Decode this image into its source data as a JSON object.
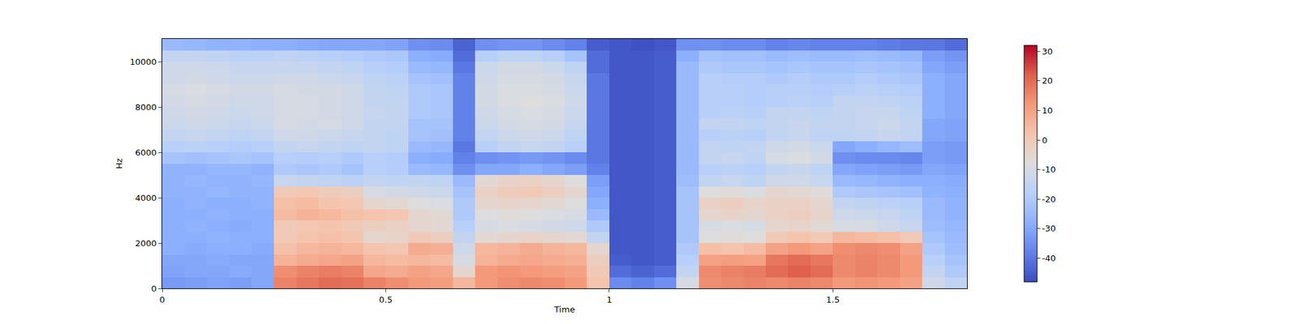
{
  "chart_data": {
    "type": "heatmap",
    "x_label": "Time",
    "y_label": "Hz",
    "x": [
      0.025,
      0.075,
      0.125,
      0.175,
      0.225,
      0.275,
      0.325,
      0.375,
      0.425,
      0.475,
      0.525,
      0.575,
      0.625,
      0.675,
      0.725,
      0.775,
      0.825,
      0.875,
      0.925,
      0.975,
      1.025,
      1.075,
      1.125,
      1.175,
      1.225,
      1.275,
      1.325,
      1.375,
      1.425,
      1.475,
      1.525,
      1.575,
      1.625,
      1.675,
      1.725,
      1.775
    ],
    "y": [
      250,
      750,
      1250,
      1750,
      2250,
      2750,
      3250,
      3750,
      4250,
      4750,
      5250,
      5750,
      6250,
      6750,
      7250,
      7750,
      8250,
      8750,
      9250,
      9750,
      10250,
      10750
    ],
    "z": [
      [
        -33,
        -32,
        -31,
        -32,
        -30,
        16,
        18,
        20,
        19,
        16,
        14,
        12,
        11,
        5,
        12,
        14,
        15,
        14,
        12,
        2,
        -36,
        -38,
        -35,
        -10,
        14,
        15,
        16,
        15,
        16,
        15,
        12,
        13,
        12,
        10,
        -12,
        -16
      ],
      [
        -31,
        -30,
        -30,
        -29,
        -30,
        14,
        16,
        17,
        16,
        9,
        8,
        10,
        9,
        -5,
        12,
        13,
        12,
        11,
        10,
        0,
        -42,
        -44,
        -42,
        -15,
        15,
        16,
        17,
        20,
        22,
        20,
        15,
        16,
        15,
        12,
        -15,
        -20
      ],
      [
        -30,
        -30,
        -29,
        -30,
        -30,
        6,
        8,
        9,
        10,
        5,
        4,
        5,
        4,
        -10,
        6,
        8,
        9,
        8,
        7,
        -2,
        -45,
        -46,
        -45,
        -18,
        10,
        11,
        10,
        18,
        20,
        18,
        15,
        16,
        15,
        12,
        -18,
        -22
      ],
      [
        -28,
        -29,
        -28,
        -28,
        -29,
        3,
        5,
        6,
        5,
        2,
        1,
        8,
        7,
        -12,
        5,
        6,
        8,
        6,
        5,
        -5,
        -46,
        -46,
        -45,
        -20,
        3,
        2,
        4,
        10,
        12,
        10,
        14,
        15,
        14,
        10,
        -20,
        -24
      ],
      [
        -28,
        -28,
        -27,
        -28,
        -28,
        0,
        2,
        3,
        2,
        -5,
        -4,
        0,
        -2,
        -15,
        -6,
        -5,
        -4,
        -5,
        -6,
        -15,
        -46,
        -46,
        -45,
        -22,
        -8,
        -7,
        -8,
        0,
        2,
        0,
        5,
        4,
        3,
        0,
        -22,
        -25
      ],
      [
        -28,
        -27,
        -28,
        -29,
        -28,
        0,
        1,
        2,
        0,
        -2,
        -3,
        -5,
        -6,
        -18,
        -10,
        -9,
        -10,
        -11,
        -12,
        -20,
        -46,
        -46,
        -45,
        -22,
        -10,
        -9,
        -10,
        -5,
        -4,
        -6,
        -10,
        -10,
        -12,
        -14,
        -24,
        -26
      ],
      [
        -28,
        -28,
        -27,
        -28,
        -28,
        4,
        6,
        5,
        3,
        2,
        1,
        -5,
        -6,
        -20,
        -8,
        -7,
        -8,
        -9,
        -10,
        -25,
        -46,
        -46,
        -45,
        -22,
        -5,
        -4,
        -5,
        -3,
        -2,
        -4,
        -12,
        -13,
        -14,
        -16,
        -25,
        -27
      ],
      [
        -28,
        -27,
        -28,
        -28,
        -27,
        3,
        4,
        2,
        1,
        -5,
        -6,
        -8,
        -9,
        -20,
        -5,
        -4,
        -5,
        -6,
        -8,
        -28,
        -46,
        -46,
        -45,
        -22,
        -3,
        -2,
        -4,
        -3,
        -3,
        -5,
        -15,
        -16,
        -17,
        -18,
        -25,
        -27
      ],
      [
        -27,
        -27,
        -26,
        -27,
        -27,
        0,
        1,
        -1,
        -2,
        -10,
        -11,
        -12,
        -13,
        -22,
        -3,
        -1,
        0,
        -2,
        -5,
        -30,
        -46,
        -46,
        -45,
        -22,
        -8,
        -7,
        -9,
        -5,
        -6,
        -7,
        -20,
        -21,
        -22,
        -23,
        -27,
        -28
      ],
      [
        -27,
        -26,
        -27,
        -27,
        -26,
        -14,
        -15,
        -16,
        -17,
        -15,
        -16,
        -15,
        -16,
        -25,
        -6,
        -4,
        -3,
        -5,
        -8,
        -32,
        -46,
        -46,
        -45,
        -24,
        -15,
        -14,
        -16,
        -12,
        -12,
        -14,
        -25,
        -26,
        -27,
        -28,
        -28,
        -29
      ],
      [
        -27,
        -27,
        -26,
        -26,
        -27,
        -20,
        -21,
        -20,
        -22,
        -18,
        -19,
        -25,
        -26,
        -35,
        -30,
        -30,
        -28,
        -30,
        -32,
        -38,
        -46,
        -46,
        -45,
        -25,
        -18,
        -17,
        -18,
        -15,
        -14,
        -16,
        -30,
        -31,
        -32,
        -33,
        -30,
        -31
      ],
      [
        -22,
        -23,
        -22,
        -21,
        -22,
        -18,
        -19,
        -18,
        -20,
        -18,
        -19,
        -28,
        -29,
        -38,
        -35,
        -34,
        -33,
        -34,
        -36,
        -40,
        -46,
        -46,
        -45,
        -25,
        -15,
        -14,
        -16,
        -10,
        -9,
        -11,
        -35,
        -36,
        -36,
        -37,
        -32,
        -33
      ],
      [
        -18,
        -17,
        -18,
        -19,
        -18,
        -15,
        -14,
        -15,
        -16,
        -15,
        -16,
        -25,
        -26,
        -40,
        -18,
        -15,
        -14,
        -15,
        -18,
        -40,
        -46,
        -46,
        -45,
        -25,
        -15,
        -16,
        -15,
        -12,
        -11,
        -13,
        -30,
        -28,
        -26,
        -24,
        -32,
        -33
      ],
      [
        -15,
        -14,
        -15,
        -16,
        -15,
        -12,
        -12,
        -13,
        -14,
        -15,
        -16,
        -22,
        -23,
        -38,
        -15,
        -13,
        -12,
        -13,
        -16,
        -40,
        -46,
        -46,
        -45,
        -25,
        -18,
        -17,
        -18,
        -15,
        -14,
        -16,
        -16,
        -15,
        -14,
        -15,
        -30,
        -31
      ],
      [
        -13,
        -12,
        -13,
        -14,
        -13,
        -10,
        -11,
        -10,
        -12,
        -15,
        -15,
        -22,
        -22,
        -38,
        -13,
        -11,
        -10,
        -11,
        -14,
        -40,
        -46,
        -46,
        -45,
        -25,
        -15,
        -15,
        -16,
        -15,
        -14,
        -15,
        -15,
        -14,
        -13,
        -15,
        -30,
        -31
      ],
      [
        -12,
        -11,
        -12,
        -13,
        -12,
        -10,
        -10,
        -11,
        -12,
        -14,
        -15,
        -20,
        -21,
        -38,
        -12,
        -10,
        -9,
        -10,
        -13,
        -40,
        -46,
        -46,
        -45,
        -25,
        -18,
        -17,
        -18,
        -15,
        -15,
        -16,
        -15,
        -14,
        -14,
        -16,
        -28,
        -30
      ],
      [
        -11,
        -10,
        -11,
        -12,
        -12,
        -10,
        -10,
        -11,
        -12,
        -15,
        -15,
        -20,
        -21,
        -38,
        -11,
        -9,
        -8,
        -9,
        -12,
        -40,
        -46,
        -46,
        -45,
        -25,
        -18,
        -18,
        -19,
        -18,
        -17,
        -18,
        -15,
        -15,
        -16,
        -17,
        -28,
        -30
      ],
      [
        -10,
        -9,
        -10,
        -11,
        -11,
        -10,
        -11,
        -11,
        -12,
        -15,
        -16,
        -20,
        -21,
        -38,
        -11,
        -9,
        -9,
        -10,
        -13,
        -40,
        -46,
        -46,
        -45,
        -25,
        -18,
        -18,
        -19,
        -18,
        -18,
        -19,
        -18,
        -17,
        -18,
        -19,
        -28,
        -30
      ],
      [
        -12,
        -11,
        -12,
        -13,
        -13,
        -12,
        -12,
        -13,
        -14,
        -16,
        -17,
        -22,
        -23,
        -38,
        -12,
        -10,
        -10,
        -11,
        -14,
        -40,
        -46,
        -46,
        -45,
        -25,
        -18,
        -19,
        -19,
        -20,
        -19,
        -20,
        -20,
        -19,
        -20,
        -21,
        -28,
        -30
      ],
      [
        -12,
        -12,
        -13,
        -14,
        -14,
        -14,
        -14,
        -15,
        -16,
        -18,
        -19,
        -25,
        -26,
        -40,
        -13,
        -11,
        -11,
        -13,
        -16,
        -42,
        -46,
        -46,
        -45,
        -25,
        -20,
        -21,
        -21,
        -22,
        -21,
        -22,
        -22,
        -21,
        -22,
        -23,
        -30,
        -32
      ],
      [
        -15,
        -15,
        -16,
        -17,
        -17,
        -16,
        -17,
        -18,
        -19,
        -20,
        -21,
        -28,
        -29,
        -42,
        -18,
        -16,
        -16,
        -18,
        -22,
        -42,
        -46,
        -46,
        -45,
        -28,
        -22,
        -23,
        -23,
        -25,
        -24,
        -25,
        -25,
        -24,
        -25,
        -26,
        -32,
        -34
      ],
      [
        -25,
        -26,
        -27,
        -27,
        -28,
        -28,
        -29,
        -30,
        -30,
        -30,
        -31,
        -35,
        -36,
        -44,
        -35,
        -34,
        -34,
        -36,
        -38,
        -45,
        -46,
        -47,
        -46,
        -35,
        -35,
        -36,
        -36,
        -38,
        -37,
        -38,
        -38,
        -38,
        -39,
        -40,
        -40,
        -42
      ]
    ],
    "xlim": [
      0,
      1.8
    ],
    "ylim": [
      0,
      11000
    ],
    "xticks": [
      0,
      0.5,
      1,
      1.5
    ],
    "yticks": [
      0,
      2000,
      4000,
      6000,
      8000,
      10000
    ],
    "color": "coolwarm",
    "colorbar_lim": [
      -48,
      32
    ],
    "colorbar_ticks": [
      -40,
      -30,
      -20,
      -10,
      0,
      10,
      20,
      30
    ]
  }
}
